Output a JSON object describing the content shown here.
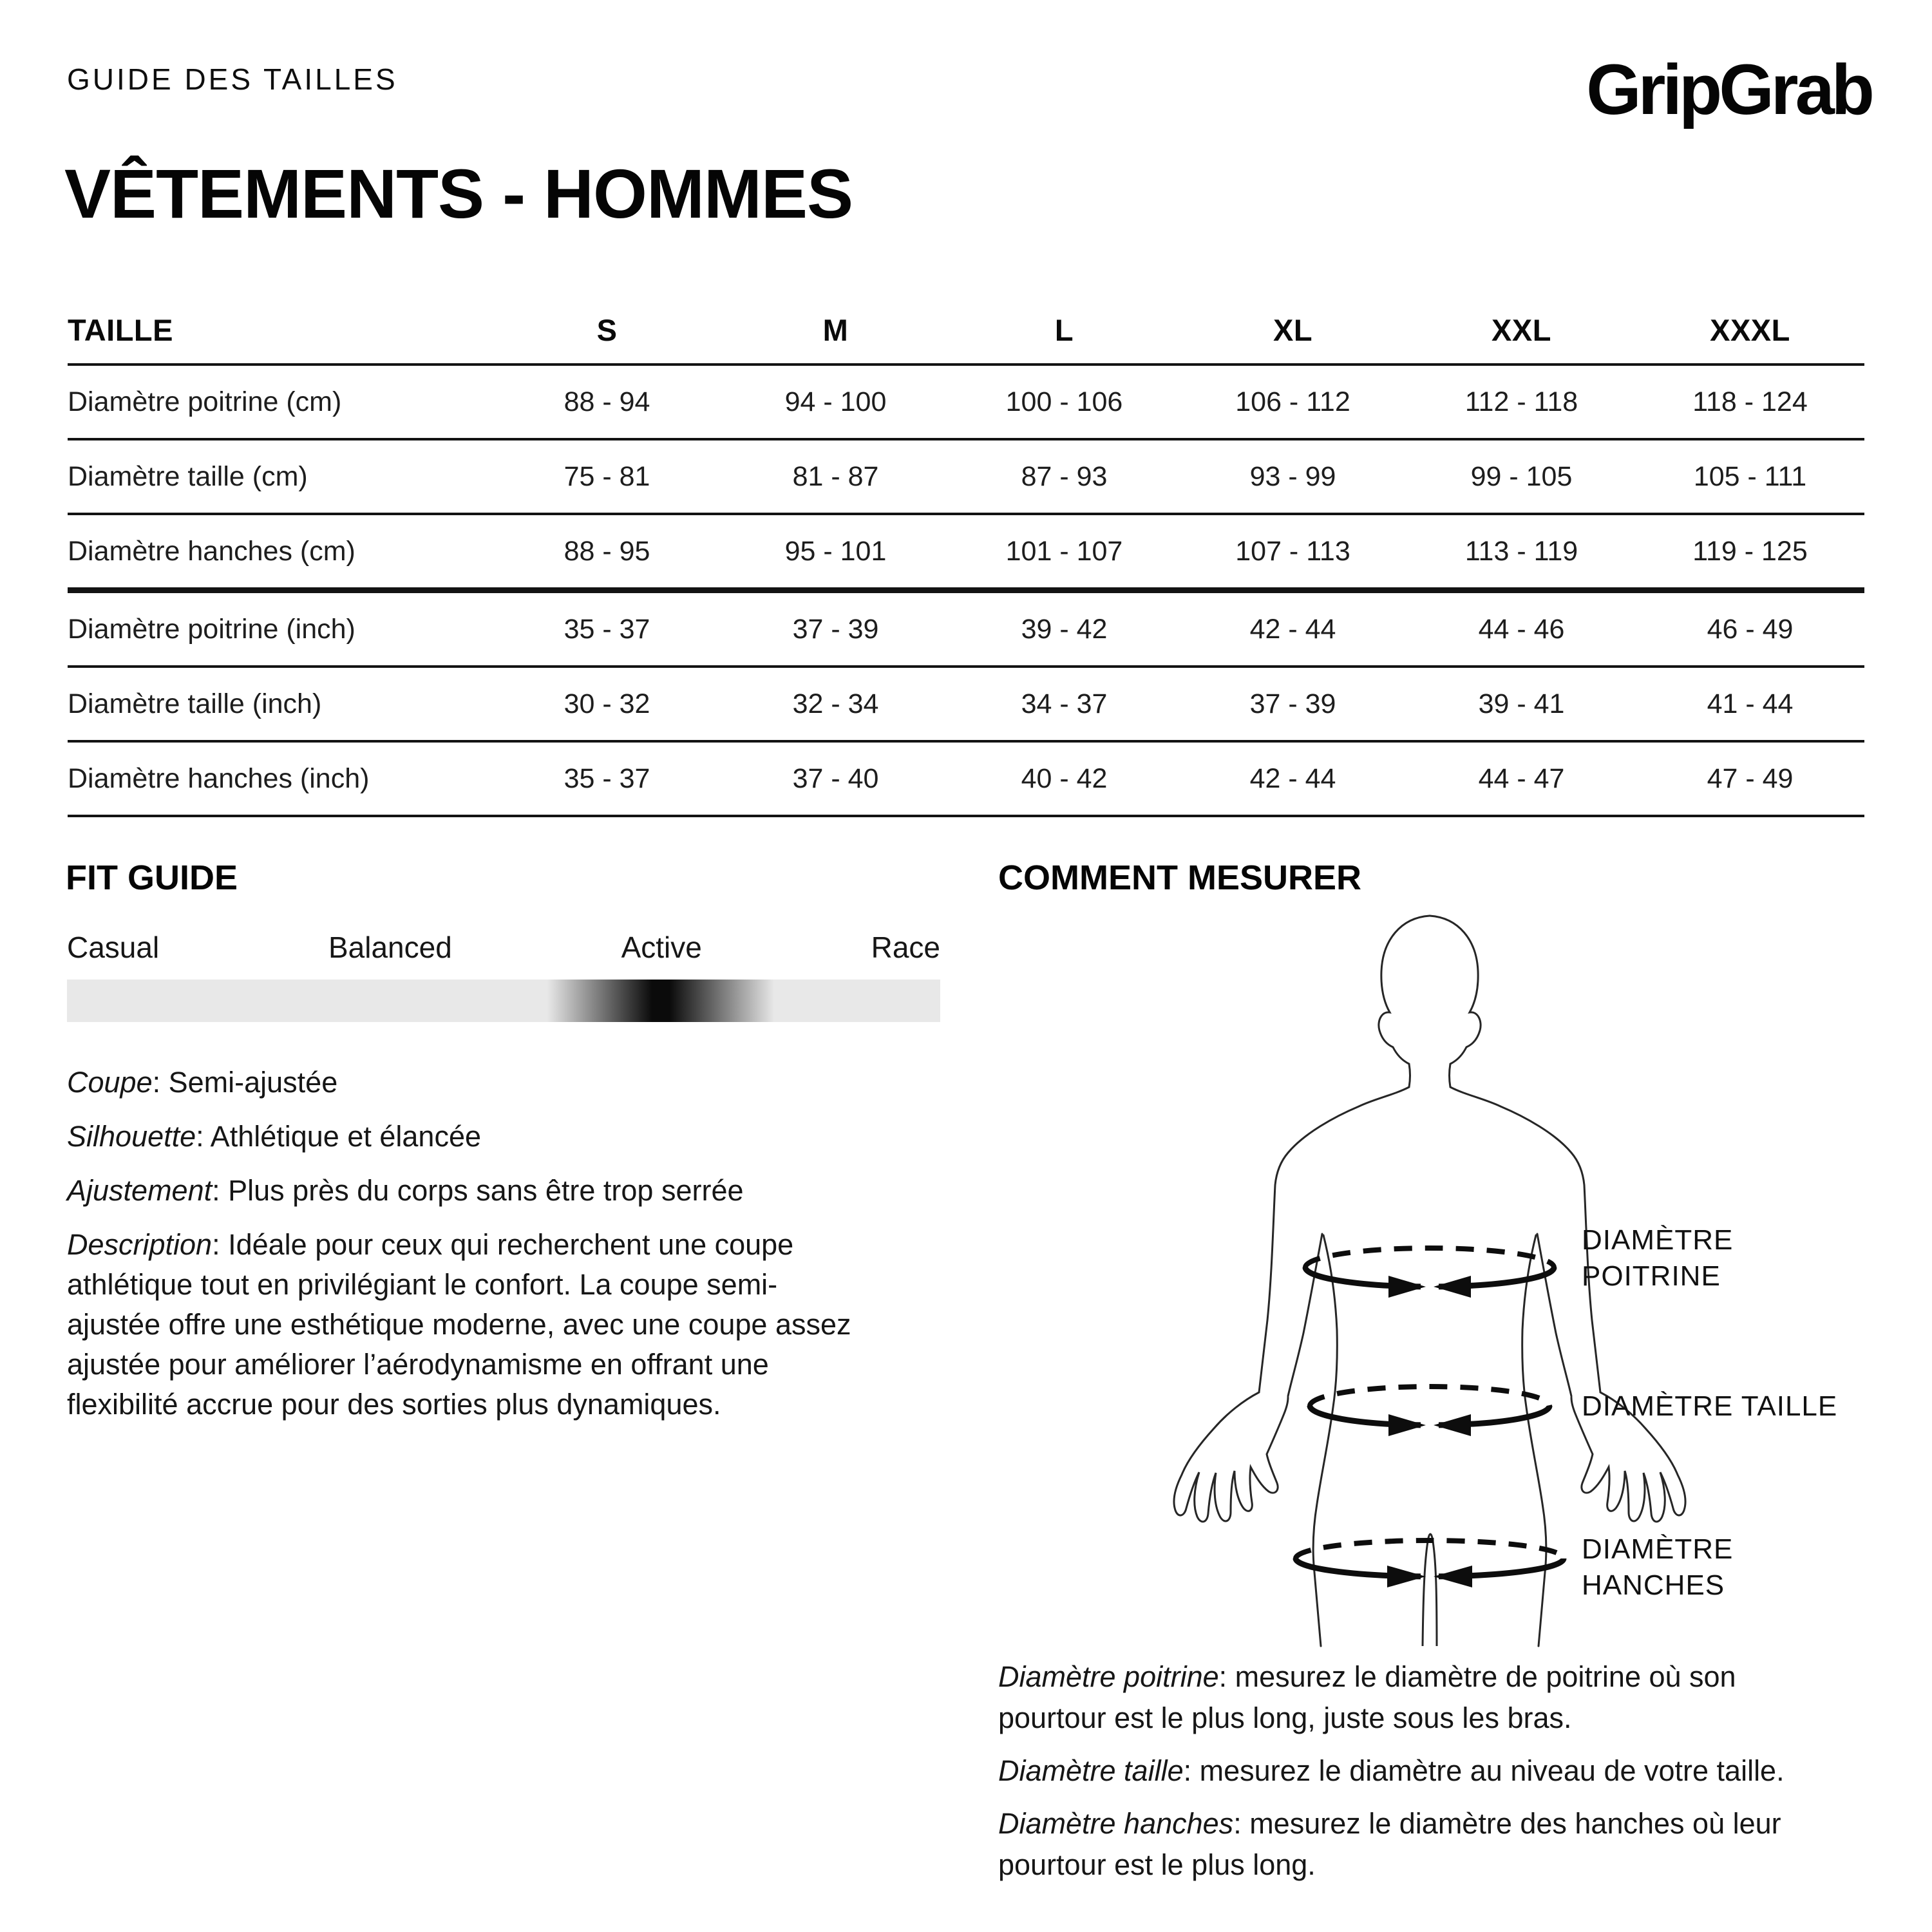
{
  "header": {
    "eyebrow": "GUIDE DES TAILLES",
    "brand": "GripGrab",
    "title": "VÊTEMENTS - HOMMES"
  },
  "size_table": {
    "header": [
      "TAILLE",
      "S",
      "M",
      "L",
      "XL",
      "XXL",
      "XXXL"
    ],
    "rows": [
      {
        "label": "Diamètre poitrine (cm)",
        "values": [
          "88 - 94",
          "94 - 100",
          "100 - 106",
          "106 - 112",
          "112 - 118",
          "118 - 124"
        ]
      },
      {
        "label": "Diamètre taille (cm)",
        "values": [
          "75 - 81",
          "81 - 87",
          "87 - 93",
          "93 - 99",
          "99 - 105",
          "105 - 111"
        ]
      },
      {
        "label": "Diamètre hanches (cm)",
        "values": [
          "88 - 95",
          "95 - 101",
          "101 - 107",
          "107 - 113",
          "113 - 119",
          "119 - 125"
        ]
      },
      {
        "label": "Diamètre poitrine (inch)",
        "values": [
          "35 - 37",
          "37 - 39",
          "39 - 42",
          "42 - 44",
          "44 - 46",
          "46 - 49"
        ]
      },
      {
        "label": "Diamètre taille (inch)",
        "values": [
          "30 - 32",
          "32 - 34",
          "34 - 37",
          "37 - 39",
          "39 - 41",
          "41 - 44"
        ]
      },
      {
        "label": "Diamètre hanches (inch)",
        "values": [
          "35 - 37",
          "37 - 40",
          "40 - 42",
          "42 - 44",
          "44 - 47",
          "47 - 49"
        ]
      }
    ]
  },
  "fit_guide": {
    "title": "FIT GUIDE",
    "labels": [
      "Casual",
      "Balanced",
      "Active",
      "Race"
    ],
    "track_color": "#e8e8e8",
    "marker_color": "#0b0b0b",
    "marker_position_pct": 68,
    "details": [
      {
        "label": "Coupe",
        "text": ": Semi-ajustée"
      },
      {
        "label": "Silhouette",
        "text": ": Athlétique et élancée"
      },
      {
        "label": "Ajustement",
        "text": ": Plus près du corps sans être trop serrée"
      },
      {
        "label": "Description",
        "text": ": Idéale pour ceux qui recherchent une coupe\nathlétique tout en privilégiant le confort. La coupe semi-\najustée offre une esthétique moderne, avec une coupe assez\najustée pour améliorer l’aérodynamisme en offrant une\nflexibilité accrue pour des sorties plus dynamiques."
      }
    ]
  },
  "measure": {
    "title": "COMMENT MESURER",
    "figure_labels": {
      "chest": "DIAMÈTRE\nPOITRINE",
      "waist": "DIAMÈTRE TAILLE",
      "hips": "DIAMÈTRE\nHANCHES"
    },
    "notes": [
      {
        "label": "Diamètre poitrine",
        "text": ": mesurez le diamètre de poitrine où son\npourtour est le plus long, juste sous les bras."
      },
      {
        "label": "Diamètre taille",
        "text": ": mesurez le diamètre au niveau de votre taille."
      },
      {
        "label": "Diamètre hanches",
        "text": ": mesurez le diamètre des hanches où leur\npourtour est le plus long."
      }
    ]
  }
}
